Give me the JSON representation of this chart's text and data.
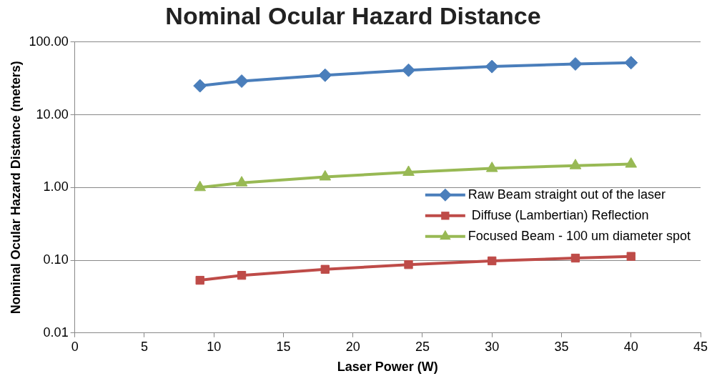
{
  "chart_data": {
    "type": "line",
    "title": "Nominal Ocular Hazard Distance",
    "xlabel": "Laser Power (W)",
    "ylabel": "Nominal Ocular Hazard Distance (meters)",
    "x": [
      9,
      12,
      18,
      24,
      30,
      36,
      40
    ],
    "series": [
      {
        "name": "Raw Beam straight out of the laser",
        "color": "#4a7ebb",
        "marker": "diamond",
        "values": [
          25,
          29,
          35,
          41,
          46,
          50,
          52
        ]
      },
      {
        "name": " Diffuse (Lambertian) Reflection",
        "color": "#be4b48",
        "marker": "square",
        "values": [
          0.053,
          0.062,
          0.075,
          0.087,
          0.098,
          0.107,
          0.113
        ]
      },
      {
        "name": "Focused Beam - 100 um diameter spot",
        "color": "#98b954",
        "marker": "triangle",
        "values": [
          1.0,
          1.16,
          1.4,
          1.62,
          1.83,
          2.0,
          2.1
        ]
      }
    ],
    "xlim": [
      0,
      45
    ],
    "xticks": [
      0,
      5,
      10,
      15,
      20,
      25,
      30,
      35,
      40,
      45
    ],
    "ylim": [
      0.01,
      100
    ],
    "yticks": [
      {
        "value": 0.01,
        "label": "0.01"
      },
      {
        "value": 0.1,
        "label": "0.10"
      },
      {
        "value": 1,
        "label": "1.00"
      },
      {
        "value": 10,
        "label": "10.00"
      },
      {
        "value": 100,
        "label": "100.00"
      }
    ],
    "log": "y",
    "grid": "y",
    "legend": "right",
    "line_style": "solid"
  }
}
